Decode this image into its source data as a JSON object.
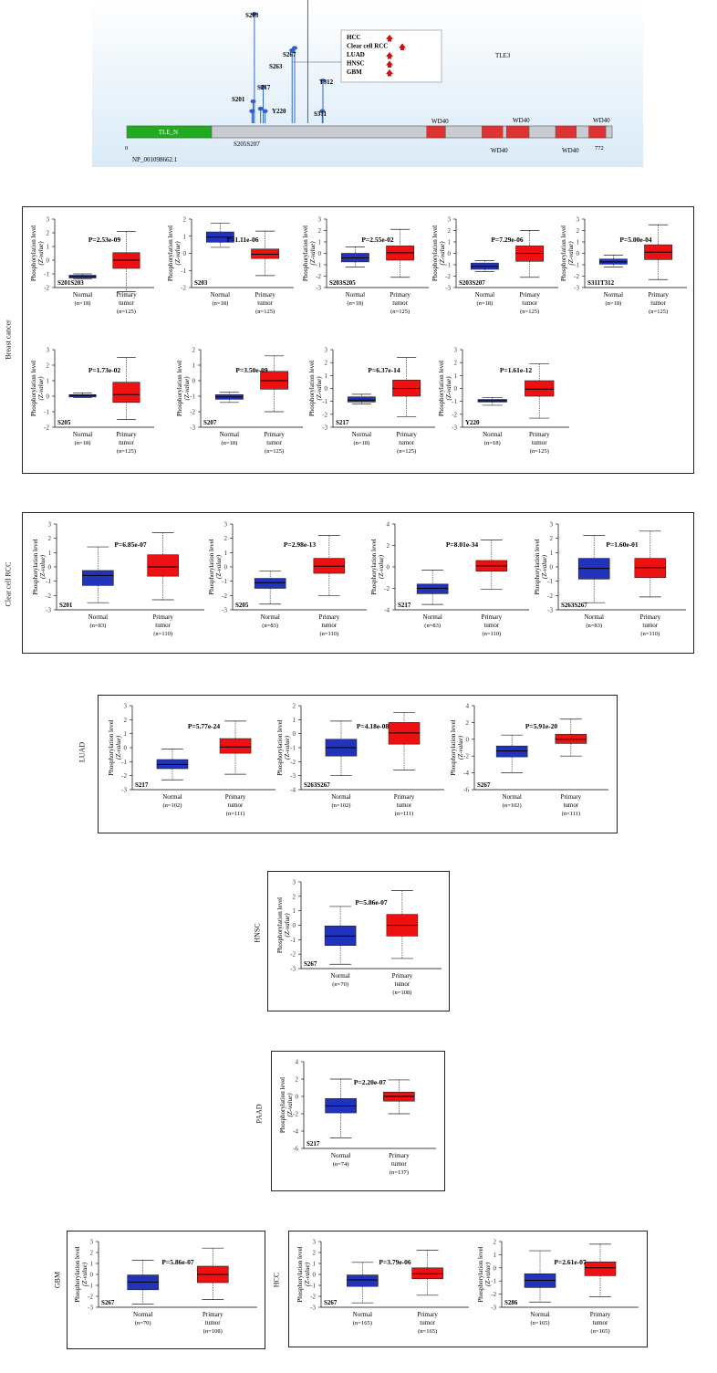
{
  "lollipop": {
    "protein_id": "NP_001098662.1",
    "gene_name": "TLE3",
    "length": 772,
    "start_label": "0",
    "end_label": "772",
    "domains": [
      {
        "name": "TLE_N",
        "start": 1,
        "end": 135,
        "color": "#22aa22"
      },
      {
        "name": "WD40",
        "start": 477,
        "end": 507,
        "color": "#dd3333"
      },
      {
        "name": "WD40",
        "start": 565,
        "end": 598,
        "color": "#dd3333"
      },
      {
        "name": "WD40",
        "start": 604,
        "end": 640,
        "color": "#dd3333"
      },
      {
        "name": "WD40",
        "start": 682,
        "end": 715,
        "color": "#dd3333"
      },
      {
        "name": "WD40",
        "start": 735,
        "end": 762,
        "color": "#dd3333"
      }
    ],
    "bottom_labels": [
      "S205S207"
    ],
    "sites": [
      {
        "label": "S201",
        "pos": 201,
        "height": 0.18
      },
      {
        "label": "S203",
        "pos": 203,
        "height": 0.9
      },
      {
        "label": "S205",
        "pos": 205,
        "height": 0.1
      },
      {
        "label": "S207",
        "pos": 207,
        "height": 0.12
      },
      {
        "label": "S217",
        "pos": 217,
        "height": 0.3
      },
      {
        "label": "Y220",
        "pos": 220,
        "height": 0.1
      },
      {
        "label": "S263",
        "pos": 263,
        "height": 0.6
      },
      {
        "label": "S267",
        "pos": 267,
        "height": 0.62
      },
      {
        "label": "",
        "pos": 288,
        "height": 1.05
      },
      {
        "label": "S311",
        "pos": 311,
        "height": 0.1
      },
      {
        "label": "T312",
        "pos": 312,
        "height": 0.35
      }
    ],
    "legend": [
      {
        "label": "HCC",
        "color": "#cc1111"
      },
      {
        "label": "Clear cell RCC",
        "color": "#cc1111"
      },
      {
        "label": "LUAD",
        "color": "#cc1111"
      },
      {
        "label": "HNSC",
        "color": "#cc1111"
      },
      {
        "label": "GBM",
        "color": "#cc1111"
      }
    ]
  },
  "common": {
    "ylabel_line1": "Phosphorylation level",
    "ylabel_line2": "(Z-value)",
    "normal_label": "Normal",
    "tumor_label_line1": "Primary",
    "tumor_label_line2": "tumor"
  },
  "colors": {
    "normal": "#2233bb",
    "tumor": "#ee1111"
  },
  "chart_data": [
    {
      "type": "box",
      "cancer": "Breast cancer",
      "site": "S201S203",
      "pvalue": "P=2.53e-09",
      "ylim": [
        -2,
        3
      ],
      "yticks": [
        -2,
        -1,
        0,
        1,
        2,
        3
      ],
      "normal_n": "(n=18)",
      "tumor_n": "(n=125)",
      "normal": {
        "min": -1.35,
        "q1": -1.3,
        "median": -1.2,
        "q3": -1.1,
        "max": -1.0
      },
      "tumor": {
        "min": -2.3,
        "q1": -0.6,
        "median": 0.0,
        "q3": 0.55,
        "max": 2.1
      }
    },
    {
      "type": "box",
      "cancer": "Breast cancer",
      "site": "S203",
      "pvalue": "P=1.11e-06",
      "ylim": [
        -2,
        2
      ],
      "yticks": [
        -2,
        -1,
        0,
        1,
        2
      ],
      "normal_n": "(n=18)",
      "tumor_n": "(n=125)",
      "normal": {
        "min": 0.35,
        "q1": 0.65,
        "median": 0.95,
        "q3": 1.25,
        "max": 1.75
      },
      "tumor": {
        "min": -1.3,
        "q1": -0.3,
        "median": -0.05,
        "q3": 0.25,
        "max": 1.3
      }
    },
    {
      "type": "box",
      "cancer": "Breast cancer",
      "site": "S203S205",
      "pvalue": "P=2.55e-02",
      "ylim": [
        -3,
        3
      ],
      "yticks": [
        -3,
        -2,
        -1,
        0,
        1,
        2,
        3
      ],
      "normal_n": "(n=18)",
      "tumor_n": "(n=125)",
      "normal": {
        "min": -1.2,
        "q1": -0.75,
        "median": -0.4,
        "q3": 0.0,
        "max": 0.55
      },
      "tumor": {
        "min": -2.1,
        "q1": -0.6,
        "median": 0.05,
        "q3": 0.65,
        "max": 2.1
      }
    },
    {
      "type": "box",
      "cancer": "Breast cancer",
      "site": "S203S207",
      "pvalue": "P=7.29e-06",
      "ylim": [
        -3,
        3
      ],
      "yticks": [
        -3,
        -2,
        -1,
        0,
        1,
        2,
        3
      ],
      "normal_n": "(n=18)",
      "tumor_n": "(n=125)",
      "normal": {
        "min": -1.6,
        "q1": -1.4,
        "median": -1.15,
        "q3": -0.85,
        "max": -0.65
      },
      "tumor": {
        "min": -2.1,
        "q1": -0.7,
        "median": 0.0,
        "q3": 0.65,
        "max": 2.0
      }
    },
    {
      "type": "box",
      "cancer": "Breast cancer",
      "site": "S311T312",
      "pvalue": "P=5.00e-04",
      "ylim": [
        -3,
        3
      ],
      "yticks": [
        -3,
        -2,
        -1,
        0,
        1,
        2,
        3
      ],
      "normal_n": "(n=18)",
      "tumor_n": "(n=125)",
      "normal": {
        "min": -1.2,
        "q1": -0.95,
        "median": -0.75,
        "q3": -0.5,
        "max": -0.15
      },
      "tumor": {
        "min": -2.3,
        "q1": -0.55,
        "median": 0.1,
        "q3": 0.75,
        "max": 2.5
      }
    },
    {
      "type": "box",
      "cancer": "Breast cancer",
      "site": "S205",
      "pvalue": "P=1.73e-02",
      "ylim": [
        -2,
        3
      ],
      "yticks": [
        -2,
        -1,
        0,
        1,
        2,
        3
      ],
      "normal_n": "(n=18)",
      "tumor_n": "(n=125)",
      "normal": {
        "min": -0.1,
        "q1": -0.05,
        "median": 0.05,
        "q3": 0.1,
        "max": 0.2
      },
      "tumor": {
        "min": -1.5,
        "q1": -0.4,
        "median": 0.1,
        "q3": 0.9,
        "max": 2.5
      }
    },
    {
      "type": "box",
      "cancer": "Breast cancer",
      "site": "S207",
      "pvalue": "P=3.50e-09",
      "ylim": [
        -3,
        2
      ],
      "yticks": [
        -3,
        -2,
        -1,
        0,
        1,
        2
      ],
      "normal_n": "(n=18)",
      "tumor_n": "(n=125)",
      "normal": {
        "min": -1.4,
        "q1": -1.2,
        "median": -1.05,
        "q3": -0.9,
        "max": -0.75
      },
      "tumor": {
        "min": -2.0,
        "q1": -0.55,
        "median": 0.0,
        "q3": 0.6,
        "max": 1.6
      }
    },
    {
      "type": "box",
      "cancer": "Breast cancer",
      "site": "S217",
      "pvalue": "P=6.37e-14",
      "ylim": [
        -3,
        3
      ],
      "yticks": [
        -3,
        -2,
        -1,
        0,
        1,
        2,
        3
      ],
      "normal_n": "(n=18)",
      "tumor_n": "(n=125)",
      "normal": {
        "min": -1.2,
        "q1": -1.05,
        "median": -0.9,
        "q3": -0.65,
        "max": -0.45
      },
      "tumor": {
        "min": -2.2,
        "q1": -0.6,
        "median": 0.0,
        "q3": 0.65,
        "max": 2.4
      }
    },
    {
      "type": "box",
      "cancer": "Breast cancer",
      "site": "Y220",
      "pvalue": "P=1.61e-12",
      "ylim": [
        -3,
        3
      ],
      "yticks": [
        -3,
        -2,
        -1,
        0,
        1,
        2,
        3
      ],
      "normal_n": "(n=18)",
      "tumor_n": "(n=125)",
      "normal": {
        "min": -1.3,
        "q1": -1.05,
        "median": -0.95,
        "q3": -0.85,
        "max": -0.7
      },
      "tumor": {
        "min": -2.3,
        "q1": -0.6,
        "median": -0.05,
        "q3": 0.6,
        "max": 1.9
      }
    },
    {
      "type": "box",
      "cancer": "Clear cell RCC",
      "site": "S201",
      "pvalue": "P=6.85e-07",
      "ylim": [
        -3,
        3
      ],
      "yticks": [
        -3,
        -2,
        -1,
        0,
        1,
        2,
        3
      ],
      "normal_n": "(n=83)",
      "tumor_n": "(n=110)",
      "normal": {
        "min": -2.5,
        "q1": -1.3,
        "median": -0.6,
        "q3": -0.25,
        "max": 1.4
      },
      "tumor": {
        "min": -2.3,
        "q1": -0.65,
        "median": 0.0,
        "q3": 0.85,
        "max": 2.4
      }
    },
    {
      "type": "box",
      "cancer": "Clear cell RCC",
      "site": "S205",
      "pvalue": "P=2.98e-13",
      "ylim": [
        -3,
        3
      ],
      "yticks": [
        -3,
        -2,
        -1,
        0,
        1,
        2,
        3
      ],
      "normal_n": "(n=83)",
      "tumor_n": "(n=110)",
      "normal": {
        "min": -2.6,
        "q1": -1.5,
        "median": -1.1,
        "q3": -0.8,
        "max": -0.3
      },
      "tumor": {
        "min": -2.0,
        "q1": -0.45,
        "median": 0.05,
        "q3": 0.6,
        "max": 2.2
      }
    },
    {
      "type": "box",
      "cancer": "Clear cell RCC",
      "site": "S217",
      "pvalue": "P=8.01e-34",
      "ylim": [
        -4,
        4
      ],
      "yticks": [
        -4,
        -2,
        0,
        2,
        4
      ],
      "normal_n": "(n=83)",
      "tumor_n": "(n=110)",
      "normal": {
        "min": -3.5,
        "q1": -2.5,
        "median": -2.0,
        "q3": -1.6,
        "max": -0.3
      },
      "tumor": {
        "min": -2.1,
        "q1": -0.4,
        "median": 0.1,
        "q3": 0.6,
        "max": 2.5
      }
    },
    {
      "type": "box",
      "cancer": "Clear cell RCC",
      "site": "S263S267",
      "pvalue": "P=1.60e-01",
      "ylim": [
        -3,
        3
      ],
      "yticks": [
        -3,
        -2,
        -1,
        0,
        1,
        2,
        3
      ],
      "normal_n": "(n=83)",
      "tumor_n": "(n=110)",
      "normal": {
        "min": -2.5,
        "q1": -0.85,
        "median": -0.1,
        "q3": 0.6,
        "max": 2.2
      },
      "tumor": {
        "min": -2.1,
        "q1": -0.75,
        "median": -0.05,
        "q3": 0.6,
        "max": 2.5
      }
    },
    {
      "type": "box",
      "cancer": "LUAD",
      "site": "S217",
      "pvalue": "P=5.77e-24",
      "ylim": [
        -3,
        3
      ],
      "yticks": [
        -3,
        -2,
        -1,
        0,
        1,
        2,
        3
      ],
      "normal_n": "(n=102)",
      "tumor_n": "(n=111)",
      "normal": {
        "min": -2.3,
        "q1": -1.5,
        "median": -1.2,
        "q3": -0.85,
        "max": -0.1
      },
      "tumor": {
        "min": -1.9,
        "q1": -0.4,
        "median": 0.05,
        "q3": 0.65,
        "max": 1.9
      }
    },
    {
      "type": "box",
      "cancer": "LUAD",
      "site": "S263S267",
      "pvalue": "P=4.18e-08",
      "ylim": [
        -4,
        2
      ],
      "yticks": [
        -4,
        -3,
        -2,
        -1,
        0,
        1,
        2
      ],
      "normal_n": "(n=102)",
      "tumor_n": "(n=111)",
      "normal": {
        "min": -3.0,
        "q1": -1.6,
        "median": -1.0,
        "q3": -0.4,
        "max": 0.9
      },
      "tumor": {
        "min": -2.6,
        "q1": -0.75,
        "median": 0.05,
        "q3": 0.8,
        "max": 1.5
      }
    },
    {
      "type": "box",
      "cancer": "LUAD",
      "site": "S267",
      "pvalue": "P=5.91e-20",
      "ylim": [
        -6,
        4
      ],
      "yticks": [
        -6,
        -4,
        -2,
        0,
        2,
        4
      ],
      "normal_n": "(n=102)",
      "tumor_n": "(n=111)",
      "normal": {
        "min": -4.0,
        "q1": -2.1,
        "median": -1.4,
        "q3": -0.8,
        "max": 0.5
      },
      "tumor": {
        "min": -2.0,
        "q1": -0.5,
        "median": 0.0,
        "q3": 0.6,
        "max": 2.4
      }
    },
    {
      "type": "box",
      "cancer": "HNSC",
      "site": "S267",
      "pvalue": "P=5.86e-07",
      "ylim": [
        -3,
        3
      ],
      "yticks": [
        -3,
        -2,
        -1,
        0,
        1,
        2,
        3
      ],
      "normal_n": "(n=70)",
      "tumor_n": "(n=108)",
      "normal": {
        "min": -2.7,
        "q1": -1.4,
        "median": -0.75,
        "q3": -0.05,
        "max": 1.3
      },
      "tumor": {
        "min": -2.3,
        "q1": -0.75,
        "median": 0.0,
        "q3": 0.75,
        "max": 2.4
      }
    },
    {
      "type": "box",
      "cancer": "PAAD",
      "site": "S217",
      "pvalue": "P=2.20e-07",
      "ylim": [
        -6,
        4
      ],
      "yticks": [
        -6,
        -4,
        -2,
        0,
        2,
        4
      ],
      "normal_n": "(n=74)",
      "tumor_n": "(n=137)",
      "normal": {
        "min": -4.8,
        "q1": -1.9,
        "median": -1.1,
        "q3": -0.25,
        "max": 2.0
      },
      "tumor": {
        "min": -2.0,
        "q1": -0.55,
        "median": 0.0,
        "q3": 0.5,
        "max": 1.9
      }
    },
    {
      "type": "box",
      "cancer": "GBM",
      "site": "S267",
      "pvalue": "P=5.86e-07",
      "ylim": [
        -3,
        3
      ],
      "yticks": [
        -3,
        -2,
        -1,
        0,
        1,
        2,
        3
      ],
      "normal_n": "(n=70)",
      "tumor_n": "(n=108)",
      "normal": {
        "min": -2.7,
        "q1": -1.4,
        "median": -0.7,
        "q3": -0.05,
        "max": 1.3
      },
      "tumor": {
        "min": -2.3,
        "q1": -0.75,
        "median": 0.0,
        "q3": 0.75,
        "max": 2.4
      }
    },
    {
      "type": "box",
      "cancer": "HCC",
      "site": "S267",
      "pvalue": "P=3.79e-06",
      "ylim": [
        -3,
        3
      ],
      "yticks": [
        -3,
        -2,
        -1,
        0,
        1,
        2,
        3
      ],
      "normal_n": "(n=165)",
      "tumor_n": "(n=165)",
      "normal": {
        "min": -2.6,
        "q1": -1.1,
        "median": -0.5,
        "q3": -0.05,
        "max": 1.1
      },
      "tumor": {
        "min": -1.9,
        "q1": -0.4,
        "median": 0.05,
        "q3": 0.6,
        "max": 2.2
      }
    },
    {
      "type": "box",
      "cancer": "HCC",
      "site": "S286",
      "pvalue": "P=2.61e-07",
      "ylim": [
        -3,
        2
      ],
      "yticks": [
        -3,
        -2,
        -1,
        0,
        1,
        2
      ],
      "normal_n": "(n=165)",
      "tumor_n": "(n=165)",
      "normal": {
        "min": -2.6,
        "q1": -1.5,
        "median": -0.95,
        "q3": -0.45,
        "max": 1.3
      },
      "tumor": {
        "min": -2.2,
        "q1": -0.6,
        "median": 0.0,
        "q3": 0.45,
        "max": 1.8
      }
    }
  ]
}
